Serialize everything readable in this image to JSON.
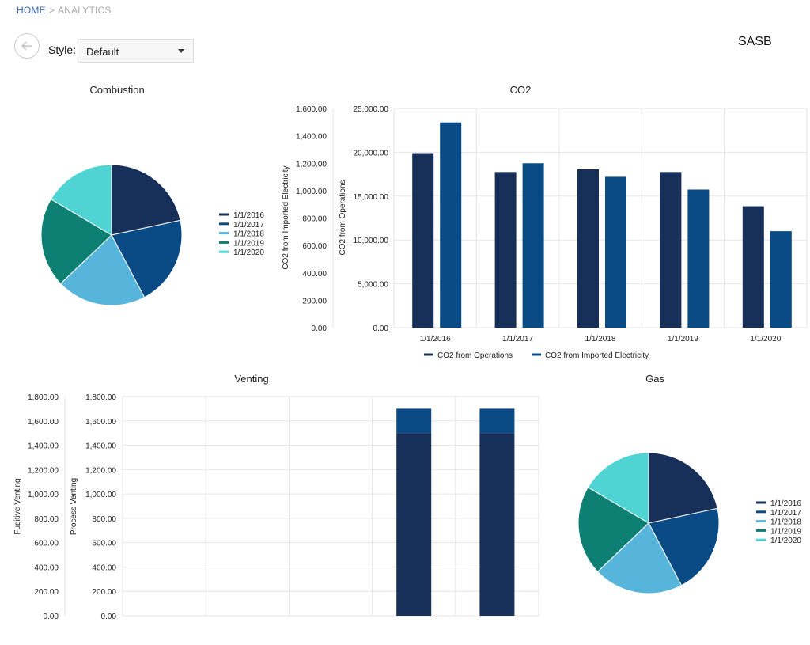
{
  "breadcrumb": {
    "home": "HOME",
    "separator": ">",
    "current": "ANALYTICS"
  },
  "controls": {
    "style_label": "Style:",
    "style_value": "Default"
  },
  "report_title": "SASB",
  "colors": {
    "c2016": "#17305a",
    "c2017": "#0a4a85",
    "c2018": "#57b5db",
    "c2019": "#0e8073",
    "c2020": "#4fd3d3",
    "bar1": "#17305a",
    "bar2": "#0a4a85"
  },
  "chart_data": [
    {
      "id": "combustion",
      "type": "pie",
      "title": "Combustion",
      "categories": [
        "1/1/2016",
        "1/1/2017",
        "1/1/2018",
        "1/1/2019",
        "1/1/2020"
      ],
      "values": [
        21,
        20,
        20,
        20,
        16
      ],
      "legend": "right"
    },
    {
      "id": "co2",
      "type": "bar",
      "title": "CO2",
      "categories": [
        "1/1/2016",
        "1/1/2017",
        "1/1/2018",
        "1/1/2019",
        "1/1/2020"
      ],
      "series": [
        {
          "name": "CO2 from Operations",
          "values": [
            19900,
            17750,
            18050,
            17750,
            13850
          ],
          "axis": "right"
        },
        {
          "name": "CO2 from Imported Electricity",
          "values": [
            23400,
            18750,
            17200,
            15750,
            11000
          ],
          "axis": "right"
        }
      ],
      "ylabel_left": "CO2 from Imported Electricity",
      "ylabel_right": "CO2 from Operations",
      "yticks_left": [
        "0.00",
        "200.00",
        "400.00",
        "600.00",
        "800.00",
        "1,000.00",
        "1,200.00",
        "1,400.00",
        "1,600.00"
      ],
      "yticks_right": [
        "0.00",
        "5,000.00",
        "10,000.00",
        "15,000.00",
        "20,000.00",
        "25,000.00"
      ],
      "ylim_left": [
        0,
        1600
      ],
      "ylim_right": [
        0,
        25000
      ],
      "legend": "bottom",
      "grid": true
    },
    {
      "id": "venting",
      "type": "bar",
      "stacked": true,
      "title": "Venting",
      "categories": [
        "",
        "",
        "",
        "",
        ""
      ],
      "series": [
        {
          "name": "Fugitive Venting",
          "values": [
            0,
            0,
            0,
            1500,
            1500
          ]
        },
        {
          "name": "Process Venting",
          "values": [
            0,
            0,
            0,
            200,
            200
          ]
        }
      ],
      "ylabel_left": "Fugitive Venting",
      "ylabel_right": "Process Venting",
      "yticks_left": [
        "0.00",
        "200.00",
        "400.00",
        "600.00",
        "800.00",
        "1,000.00",
        "1,200.00",
        "1,400.00",
        "1,600.00",
        "1,800.00"
      ],
      "yticks_right": [
        "0.00",
        "200.00",
        "400.00",
        "600.00",
        "800.00",
        "1,000.00",
        "1,200.00",
        "1,400.00",
        "1,600.00",
        "1,800.00"
      ],
      "ylim": [
        0,
        1800
      ],
      "grid": true
    },
    {
      "id": "gas",
      "type": "pie",
      "title": "Gas",
      "categories": [
        "1/1/2016",
        "1/1/2017",
        "1/1/2018",
        "1/1/2019",
        "1/1/2020"
      ],
      "values": [
        21,
        20,
        20,
        20,
        16
      ],
      "legend": "right"
    }
  ]
}
